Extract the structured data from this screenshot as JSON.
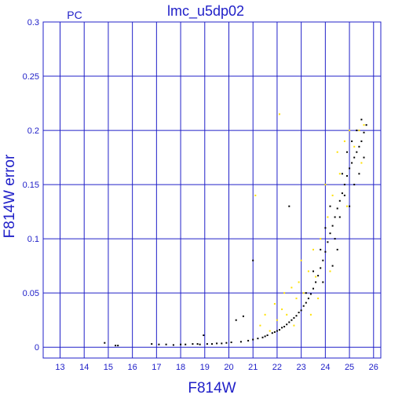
{
  "chart_data": {
    "type": "scatter",
    "title": "lmc_u5dp02",
    "corner_label": "PC",
    "xlabel": "F814W",
    "ylabel": "F814W error",
    "xlim": [
      12.3,
      26.3
    ],
    "ylim": [
      -0.01,
      0.3
    ],
    "xticks": [
      13,
      14,
      15,
      16,
      17,
      18,
      19,
      20,
      21,
      22,
      23,
      24,
      25,
      26
    ],
    "xtick_labels": [
      "13",
      "14",
      "15",
      "16",
      "17",
      "18",
      "19",
      "20",
      "21",
      "22",
      "23",
      "24",
      "25",
      "26"
    ],
    "yticks": [
      0,
      0.05,
      0.1,
      0.15,
      0.2,
      0.25,
      0.3
    ],
    "ytick_labels": [
      "0",
      "0.05",
      "0.1",
      "0.15",
      "0.2",
      "0.25",
      "0.3"
    ],
    "grid": true,
    "colors": {
      "axes": "#2020c8",
      "series_main": "#000000",
      "series_flagged": "#ffe000"
    },
    "series": [
      {
        "color": "#000000",
        "points": [
          [
            14.85,
            0.004
          ],
          [
            15.3,
            0.0015
          ],
          [
            15.4,
            0.0015
          ],
          [
            16.8,
            0.003
          ],
          [
            17.1,
            0.0025
          ],
          [
            17.4,
            0.0025
          ],
          [
            17.7,
            0.002
          ],
          [
            18.0,
            0.0025
          ],
          [
            18.2,
            0.0025
          ],
          [
            18.5,
            0.003
          ],
          [
            18.7,
            0.003
          ],
          [
            18.8,
            0.0025
          ],
          [
            18.95,
            0.011
          ],
          [
            19.1,
            0.003
          ],
          [
            19.3,
            0.003
          ],
          [
            19.5,
            0.0035
          ],
          [
            19.7,
            0.0035
          ],
          [
            19.9,
            0.004
          ],
          [
            20.1,
            0.0045
          ],
          [
            20.3,
            0.025
          ],
          [
            20.5,
            0.005
          ],
          [
            20.6,
            0.0285
          ],
          [
            20.8,
            0.006
          ],
          [
            21.0,
            0.007
          ],
          [
            21.0,
            0.08
          ],
          [
            21.2,
            0.008
          ],
          [
            21.4,
            0.009
          ],
          [
            21.5,
            0.01
          ],
          [
            21.6,
            0.011
          ],
          [
            21.8,
            0.013
          ],
          [
            21.9,
            0.014
          ],
          [
            22.0,
            0.015
          ],
          [
            22.1,
            0.016
          ],
          [
            22.2,
            0.018
          ],
          [
            22.3,
            0.019
          ],
          [
            22.4,
            0.021
          ],
          [
            22.5,
            0.023
          ],
          [
            22.5,
            0.13
          ],
          [
            22.6,
            0.025
          ],
          [
            22.7,
            0.027
          ],
          [
            22.8,
            0.029
          ],
          [
            22.9,
            0.032
          ],
          [
            23.0,
            0.034
          ],
          [
            23.1,
            0.038
          ],
          [
            23.2,
            0.041
          ],
          [
            23.3,
            0.045
          ],
          [
            23.4,
            0.049
          ],
          [
            23.5,
            0.054
          ],
          [
            23.6,
            0.06
          ],
          [
            23.7,
            0.066
          ],
          [
            23.8,
            0.073
          ],
          [
            23.9,
            0.08
          ],
          [
            24.0,
            0.088
          ],
          [
            24.1,
            0.097
          ],
          [
            24.2,
            0.105
          ],
          [
            24.3,
            0.112
          ],
          [
            24.4,
            0.12
          ],
          [
            24.5,
            0.128
          ],
          [
            24.6,
            0.135
          ],
          [
            24.7,
            0.142
          ],
          [
            24.8,
            0.15
          ],
          [
            24.9,
            0.158
          ],
          [
            25.0,
            0.165
          ],
          [
            25.1,
            0.17
          ],
          [
            25.2,
            0.175
          ],
          [
            25.3,
            0.18
          ],
          [
            25.4,
            0.185
          ],
          [
            25.5,
            0.19
          ],
          [
            25.6,
            0.198
          ],
          [
            25.7,
            0.205
          ],
          [
            23.2,
            0.05
          ],
          [
            23.5,
            0.07
          ],
          [
            23.8,
            0.09
          ],
          [
            24.0,
            0.11
          ],
          [
            24.2,
            0.13
          ],
          [
            24.4,
            0.1
          ],
          [
            24.6,
            0.12
          ],
          [
            24.8,
            0.14
          ],
          [
            25.0,
            0.13
          ],
          [
            25.2,
            0.15
          ],
          [
            25.4,
            0.16
          ],
          [
            25.6,
            0.175
          ],
          [
            25.3,
            0.2
          ],
          [
            25.5,
            0.21
          ],
          [
            25.1,
            0.19
          ],
          [
            24.7,
            0.16
          ],
          [
            24.9,
            0.18
          ],
          [
            24.3,
            0.075
          ],
          [
            24.5,
            0.09
          ],
          [
            23.9,
            0.06
          ]
        ]
      },
      {
        "color": "#ffe000",
        "points": [
          [
            21.3,
            0.02
          ],
          [
            21.5,
            0.03
          ],
          [
            21.7,
            0.015
          ],
          [
            21.9,
            0.04
          ],
          [
            22.0,
            0.025
          ],
          [
            22.1,
            0.215
          ],
          [
            22.2,
            0.035
          ],
          [
            22.3,
            0.05
          ],
          [
            22.4,
            0.03
          ],
          [
            22.6,
            0.055
          ],
          [
            22.8,
            0.045
          ],
          [
            22.9,
            0.06
          ],
          [
            23.0,
            0.08
          ],
          [
            23.1,
            0.05
          ],
          [
            23.3,
            0.07
          ],
          [
            23.5,
            0.09
          ],
          [
            23.6,
            0.065
          ],
          [
            23.8,
            0.1
          ],
          [
            24.0,
            0.15
          ],
          [
            24.1,
            0.12
          ],
          [
            24.3,
            0.14
          ],
          [
            24.5,
            0.18
          ],
          [
            24.6,
            0.16
          ],
          [
            24.8,
            0.19
          ],
          [
            25.0,
            0.2
          ],
          [
            25.2,
            0.185
          ],
          [
            25.4,
            0.2
          ],
          [
            25.6,
            0.205
          ],
          [
            25.5,
            0.17
          ],
          [
            24.9,
            0.13
          ],
          [
            21.1,
            0.14
          ],
          [
            22.7,
            0.02
          ],
          [
            23.4,
            0.03
          ],
          [
            23.7,
            0.045
          ],
          [
            24.2,
            0.07
          ]
        ]
      }
    ]
  }
}
